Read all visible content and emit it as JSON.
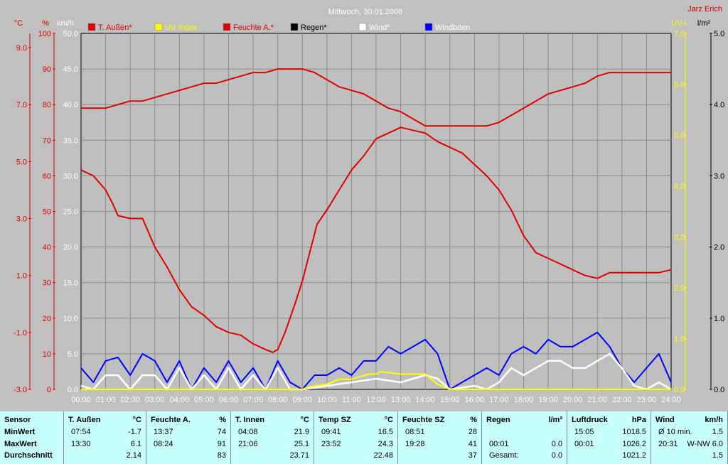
{
  "title": "Mittwoch, 30.01.2008",
  "author": "Jarz Erich",
  "axis_units": {
    "temp": "°C",
    "pct": "%",
    "kmh": "km/h",
    "uv": "UV-I",
    "rain": "l/m²"
  },
  "axis_ticks": {
    "temp": [
      "9.0",
      "7.0",
      "5.0",
      "3.0",
      "1.0",
      "-1.0",
      "-3.0"
    ],
    "pct": [
      "100",
      "90",
      "80",
      "70",
      "60",
      "50",
      "40",
      "30",
      "20",
      "10",
      "0"
    ],
    "kmh": [
      "50.0",
      "45.0",
      "40.0",
      "35.0",
      "30.0",
      "25.0",
      "20.0",
      "15.0",
      "10.0",
      "5.0",
      "0.0"
    ],
    "uv": [
      "7.0",
      "6.0",
      "5.0",
      "4.0",
      "3.0",
      "2.0",
      "1.0",
      "0.0"
    ],
    "rain": [
      "5.0",
      "4.0",
      "3.0",
      "2.0",
      "1.0",
      "0.0"
    ],
    "time": [
      "00:00",
      "01:00",
      "02:00",
      "03:00",
      "04:00",
      "05:00",
      "06:00",
      "07:00",
      "08:00",
      "09:00",
      "10:00",
      "11:00",
      "12:00",
      "13:00",
      "14:00",
      "15:00",
      "16:00",
      "17:00",
      "18:00",
      "19:00",
      "20:00",
      "21:00",
      "22:00",
      "23:00",
      "24:00"
    ]
  },
  "colors": {
    "bg": "#c0c0c0",
    "temp": "#e00000",
    "hum": "#e00000",
    "uv": "#ffff00",
    "rain": "#000000",
    "wind": "#ffffff",
    "gust": "#0000ff"
  },
  "chart_data": {
    "type": "line",
    "x_unit": "hours",
    "legend_position": "top",
    "grid": true,
    "ylim_kmh": [
      0,
      50
    ],
    "ylim_pct": [
      0,
      100
    ],
    "ylim_temp": [
      -3,
      9.5
    ],
    "ylim_uv": [
      0,
      7
    ],
    "series": [
      {
        "name": "T. Außen*",
        "axis": "temp",
        "color": "#e00000",
        "points": [
          [
            0,
            4.7
          ],
          [
            0.5,
            4.5
          ],
          [
            1,
            4.0
          ],
          [
            1.3,
            3.5
          ],
          [
            1.5,
            3.1
          ],
          [
            2,
            3.0
          ],
          [
            2.5,
            3.0
          ],
          [
            3,
            2.0
          ],
          [
            3.5,
            1.3
          ],
          [
            4,
            0.5
          ],
          [
            4.5,
            -0.1
          ],
          [
            5,
            -0.4
          ],
          [
            5.5,
            -0.8
          ],
          [
            6,
            -1.0
          ],
          [
            6.5,
            -1.1
          ],
          [
            7,
            -1.4
          ],
          [
            7.5,
            -1.6
          ],
          [
            7.8,
            -1.7
          ],
          [
            8,
            -1.6
          ],
          [
            8.3,
            -1.0
          ],
          [
            8.7,
            0.0
          ],
          [
            9,
            0.8
          ],
          [
            9.3,
            1.8
          ],
          [
            9.6,
            2.8
          ],
          [
            10,
            3.3
          ],
          [
            10.5,
            4.0
          ],
          [
            11,
            4.7
          ],
          [
            11.5,
            5.2
          ],
          [
            12,
            5.8
          ],
          [
            12.5,
            6.0
          ],
          [
            13,
            6.2
          ],
          [
            13.5,
            6.1
          ],
          [
            14,
            6.0
          ],
          [
            14.5,
            5.7
          ],
          [
            15,
            5.5
          ],
          [
            15.5,
            5.3
          ],
          [
            16,
            4.9
          ],
          [
            16.5,
            4.5
          ],
          [
            17,
            4.0
          ],
          [
            17.5,
            3.3
          ],
          [
            18,
            2.4
          ],
          [
            18.5,
            1.8
          ],
          [
            19,
            1.6
          ],
          [
            19.5,
            1.4
          ],
          [
            20,
            1.2
          ],
          [
            20.5,
            1.0
          ],
          [
            21,
            0.9
          ],
          [
            21.5,
            1.1
          ],
          [
            22,
            1.1
          ],
          [
            22.5,
            1.1
          ],
          [
            23,
            1.1
          ],
          [
            23.5,
            1.1
          ],
          [
            24,
            1.2
          ]
        ]
      },
      {
        "name": "UV Index",
        "axis": "uv",
        "color": "#ffff00",
        "points": [
          [
            0,
            0
          ],
          [
            9,
            0
          ],
          [
            9.3,
            0.05
          ],
          [
            10,
            0.1
          ],
          [
            10.5,
            0.2
          ],
          [
            11,
            0.2
          ],
          [
            11.7,
            0.3
          ],
          [
            12,
            0.3
          ],
          [
            12.2,
            0.35
          ],
          [
            13,
            0.3
          ],
          [
            14,
            0.3
          ],
          [
            14.5,
            0.1
          ],
          [
            15,
            0
          ],
          [
            24,
            0
          ]
        ]
      },
      {
        "name": "Feuchte A.*",
        "axis": "pct",
        "color": "#e00000",
        "points": [
          [
            0,
            79
          ],
          [
            1,
            79
          ],
          [
            1.5,
            80
          ],
          [
            2,
            81
          ],
          [
            2.5,
            81
          ],
          [
            3,
            82
          ],
          [
            3.5,
            83
          ],
          [
            4,
            84
          ],
          [
            4.5,
            85
          ],
          [
            5,
            86
          ],
          [
            5.5,
            86
          ],
          [
            6,
            87
          ],
          [
            6.5,
            88
          ],
          [
            7,
            89
          ],
          [
            7.5,
            89
          ],
          [
            8,
            90
          ],
          [
            8.3,
            90
          ],
          [
            8.7,
            90
          ],
          [
            9,
            90
          ],
          [
            9.5,
            89
          ],
          [
            10,
            87
          ],
          [
            10.5,
            85
          ],
          [
            11,
            84
          ],
          [
            11.5,
            83
          ],
          [
            12,
            81
          ],
          [
            12.5,
            79
          ],
          [
            13,
            78
          ],
          [
            13.5,
            76
          ],
          [
            14,
            74
          ],
          [
            14.5,
            74
          ],
          [
            15,
            74
          ],
          [
            15.5,
            74
          ],
          [
            16,
            74
          ],
          [
            16.5,
            74
          ],
          [
            17,
            75
          ],
          [
            17.5,
            77
          ],
          [
            18,
            79
          ],
          [
            18.5,
            81
          ],
          [
            19,
            83
          ],
          [
            19.5,
            84
          ],
          [
            20,
            85
          ],
          [
            20.5,
            86
          ],
          [
            21,
            88
          ],
          [
            21.5,
            89
          ],
          [
            22,
            89
          ],
          [
            22.5,
            89
          ],
          [
            23,
            89
          ],
          [
            23.5,
            89
          ],
          [
            24,
            89
          ]
        ]
      },
      {
        "name": "Regen*",
        "axis": "rain",
        "color": "#000000",
        "points": []
      },
      {
        "name": "Wind*",
        "axis": "kmh",
        "color": "#ffffff",
        "points": [
          [
            0,
            0.5
          ],
          [
            0.5,
            0
          ],
          [
            1,
            2
          ],
          [
            1.5,
            2
          ],
          [
            2,
            0
          ],
          [
            2.5,
            2
          ],
          [
            3,
            2
          ],
          [
            3.5,
            0
          ],
          [
            4,
            3
          ],
          [
            4.5,
            0
          ],
          [
            5,
            2
          ],
          [
            5.5,
            0
          ],
          [
            6,
            3
          ],
          [
            6.5,
            0
          ],
          [
            7,
            2
          ],
          [
            7.5,
            0
          ],
          [
            8,
            3
          ],
          [
            8.5,
            0
          ],
          [
            9,
            0
          ],
          [
            10,
            0.5
          ],
          [
            11,
            1
          ],
          [
            12,
            1.5
          ],
          [
            13,
            1
          ],
          [
            14,
            2
          ],
          [
            14.5,
            1.5
          ],
          [
            15,
            0
          ],
          [
            16,
            0.5
          ],
          [
            16.5,
            0
          ],
          [
            17,
            1
          ],
          [
            17.5,
            3
          ],
          [
            18,
            2
          ],
          [
            18.5,
            3
          ],
          [
            19,
            4
          ],
          [
            19.5,
            4
          ],
          [
            20,
            3
          ],
          [
            20.5,
            3
          ],
          [
            21,
            4
          ],
          [
            21.5,
            5
          ],
          [
            22,
            3
          ],
          [
            22.5,
            0.5
          ],
          [
            23,
            0
          ],
          [
            23.5,
            1
          ],
          [
            24,
            0
          ]
        ]
      },
      {
        "name": "Windböen",
        "axis": "kmh",
        "color": "#0000ff",
        "points": [
          [
            0,
            3
          ],
          [
            0.5,
            1
          ],
          [
            1,
            4
          ],
          [
            1.5,
            4.5
          ],
          [
            2,
            2
          ],
          [
            2.5,
            5
          ],
          [
            3,
            4
          ],
          [
            3.5,
            1
          ],
          [
            4,
            4
          ],
          [
            4.5,
            0
          ],
          [
            5,
            3
          ],
          [
            5.5,
            1
          ],
          [
            6,
            4
          ],
          [
            6.5,
            1
          ],
          [
            7,
            3
          ],
          [
            7.5,
            0
          ],
          [
            8,
            4
          ],
          [
            8.5,
            1
          ],
          [
            9,
            0
          ],
          [
            9.5,
            2
          ],
          [
            10,
            2
          ],
          [
            10.5,
            3
          ],
          [
            11,
            2
          ],
          [
            11.5,
            4
          ],
          [
            12,
            4
          ],
          [
            12.5,
            6
          ],
          [
            13,
            5
          ],
          [
            13.5,
            6
          ],
          [
            14,
            7
          ],
          [
            14.5,
            5
          ],
          [
            15,
            0
          ],
          [
            15.5,
            1
          ],
          [
            16,
            2
          ],
          [
            16.5,
            3
          ],
          [
            17,
            2
          ],
          [
            17.5,
            5
          ],
          [
            18,
            6
          ],
          [
            18.5,
            5
          ],
          [
            19,
            7
          ],
          [
            19.5,
            6
          ],
          [
            20,
            6
          ],
          [
            20.5,
            7
          ],
          [
            21,
            8
          ],
          [
            21.5,
            6
          ],
          [
            22,
            3
          ],
          [
            22.5,
            1
          ],
          [
            23,
            3
          ],
          [
            23.5,
            5
          ],
          [
            24,
            1
          ]
        ]
      }
    ]
  },
  "stats": {
    "row_labels": [
      "Sensor",
      "MinWert",
      "MaxWert",
      "Durchschnitt"
    ],
    "columns": [
      {
        "name": "T. Außen",
        "unit": "°C",
        "min_time": "07:54",
        "min": "-1.7",
        "max_time": "13:30",
        "max": "6.1",
        "avg": "2.14"
      },
      {
        "name": "Feuchte A.",
        "unit": "%",
        "min_time": "13:37",
        "min": "74",
        "max_time": "08:24",
        "max": "91",
        "avg": "83"
      },
      {
        "name": "T. Innen",
        "unit": "°C",
        "min_time": "04:08",
        "min": "21.9",
        "max_time": "21:06",
        "max": "25.1",
        "avg": "23.71"
      },
      {
        "name": "Temp SZ",
        "unit": "°C",
        "min_time": "09:41",
        "min": "16.5",
        "max_time": "23:52",
        "max": "24.3",
        "avg": "22.48"
      },
      {
        "name": "Feuchte SZ",
        "unit": "%",
        "min_time": "08:51",
        "min": "28",
        "max_time": "19:28",
        "max": "41",
        "avg": "37"
      },
      {
        "name": "Regen",
        "unit": "l/m²",
        "min_time": "",
        "min": "",
        "max_time": "00:01",
        "max": "0.0",
        "avg_label": "Gesamt:",
        "avg": "0.0"
      },
      {
        "name": "Luftdruck",
        "unit": "hPa",
        "min_time": "15:05",
        "min": "1018.5",
        "max_time": "00:01",
        "max": "1026.2",
        "avg": "1021.2"
      },
      {
        "name": "Wind",
        "unit": "km/h",
        "min_time": "Ø 10 min.",
        "min": "1.5",
        "max_time": "20:31",
        "max": "W-NW 6.0",
        "avg": "1.5"
      }
    ]
  }
}
